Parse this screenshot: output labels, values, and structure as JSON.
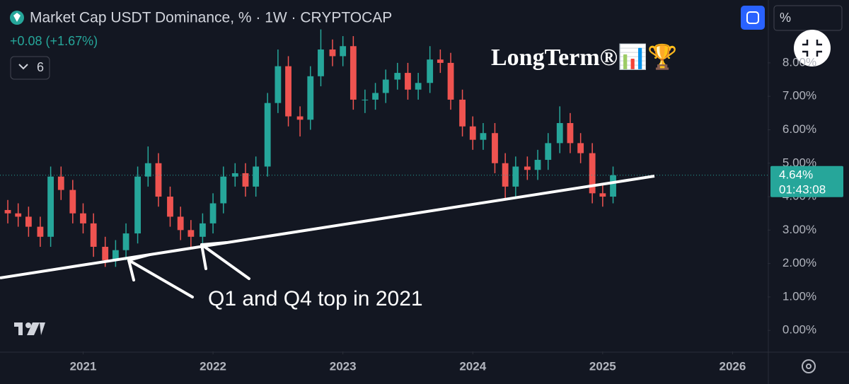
{
  "chart_data": {
    "type": "candlestick",
    "title": "Market Cap USDT Dominance, % · 1W · CRYPTOCAP",
    "change_label": "+0.08 (+1.67%)",
    "indicator_count": "6",
    "scale_button": "%",
    "watermark": "LongTerm®📊🏆",
    "annotation": "Q1 and Q4 top in 2021",
    "last_price_label": "4.64%",
    "countdown": "01:43:08",
    "up_color": "#26a69a",
    "down_color": "#ef5350",
    "x": [
      2020.42,
      2020.5,
      2020.58,
      2020.67,
      2020.75,
      2020.83,
      2020.92,
      2021.0,
      2021.08,
      2021.17,
      2021.25,
      2021.33,
      2021.42,
      2021.5,
      2021.58,
      2021.67,
      2021.75,
      2021.83,
      2021.92,
      2022.0,
      2022.08,
      2022.17,
      2022.25,
      2022.33,
      2022.42,
      2022.5,
      2022.58,
      2022.67,
      2022.75,
      2022.83,
      2022.92,
      2023.0,
      2023.08,
      2023.17,
      2023.25,
      2023.33,
      2023.42,
      2023.5,
      2023.58,
      2023.67,
      2023.75,
      2023.83,
      2023.92,
      2024.0,
      2024.08,
      2024.17,
      2024.25,
      2024.33,
      2024.42,
      2024.5,
      2024.58,
      2024.67,
      2024.75,
      2024.83,
      2024.92,
      2025.0,
      2025.08
    ],
    "open": [
      3.6,
      3.5,
      3.4,
      3.1,
      2.8,
      4.6,
      4.2,
      3.5,
      3.2,
      2.5,
      2.1,
      2.4,
      2.9,
      4.6,
      5.0,
      4.0,
      3.4,
      3.0,
      2.8,
      3.2,
      3.8,
      4.6,
      4.7,
      4.3,
      4.9,
      6.8,
      7.9,
      6.4,
      6.3,
      7.6,
      8.4,
      8.2,
      8.5,
      6.9,
      6.9,
      7.1,
      7.5,
      7.7,
      7.2,
      7.4,
      8.1,
      8.0,
      6.9,
      6.1,
      5.7,
      5.9,
      5.0,
      4.3,
      4.9,
      4.8,
      5.1,
      5.6,
      6.2,
      5.6,
      5.3,
      4.1,
      4.0
    ],
    "high": [
      3.9,
      3.8,
      3.7,
      3.4,
      4.9,
      4.9,
      4.5,
      3.8,
      3.5,
      2.8,
      2.7,
      3.2,
      4.9,
      5.5,
      5.3,
      4.3,
      3.7,
      3.3,
      3.5,
      4.1,
      4.9,
      5.0,
      5.0,
      5.2,
      7.1,
      8.4,
      8.2,
      6.7,
      7.9,
      9.0,
      8.7,
      8.8,
      8.8,
      7.2,
      7.4,
      7.8,
      8.0,
      8.0,
      7.7,
      8.5,
      8.4,
      8.3,
      7.2,
      6.4,
      6.2,
      6.2,
      5.3,
      5.2,
      5.2,
      5.4,
      5.9,
      6.7,
      6.5,
      5.9,
      5.6,
      4.4,
      4.9
    ],
    "low": [
      3.2,
      3.1,
      2.8,
      2.5,
      2.5,
      3.9,
      3.2,
      2.9,
      2.2,
      1.9,
      1.9,
      2.1,
      2.6,
      4.3,
      3.7,
      3.1,
      2.7,
      2.5,
      2.5,
      2.9,
      3.5,
      4.3,
      4.0,
      4.0,
      4.6,
      6.5,
      6.1,
      5.8,
      6.0,
      7.3,
      7.9,
      7.9,
      6.6,
      6.5,
      6.6,
      6.8,
      7.2,
      6.9,
      6.9,
      7.1,
      7.7,
      6.6,
      5.8,
      5.4,
      5.4,
      4.7,
      3.9,
      4.0,
      4.5,
      4.5,
      4.8,
      5.3,
      5.3,
      5.0,
      3.8,
      3.7,
      3.8
    ],
    "close": [
      3.5,
      3.4,
      3.1,
      2.8,
      4.6,
      4.2,
      3.5,
      3.2,
      2.5,
      2.1,
      2.4,
      2.9,
      4.6,
      5.0,
      4.0,
      3.4,
      3.0,
      2.8,
      3.2,
      3.8,
      4.6,
      4.7,
      4.3,
      4.9,
      6.8,
      7.9,
      6.4,
      6.3,
      7.6,
      8.4,
      8.2,
      8.5,
      6.9,
      6.9,
      7.1,
      7.5,
      7.7,
      7.2,
      7.4,
      8.1,
      8.0,
      6.9,
      6.1,
      5.7,
      5.9,
      5.0,
      4.3,
      4.9,
      4.8,
      5.1,
      5.6,
      6.2,
      5.6,
      5.3,
      4.1,
      4.0,
      4.64
    ],
    "xlim": [
      2020.36,
      2026.27
    ],
    "xticks": [
      2021,
      2022,
      2023,
      2024,
      2025,
      2026
    ],
    "ylim": [
      -0.63,
      9.88
    ],
    "yticks": [
      {
        "value": 0,
        "label": "0.00%"
      },
      {
        "value": 1,
        "label": "1.00%"
      },
      {
        "value": 2,
        "label": "2.00%"
      },
      {
        "value": 3,
        "label": "3.00%"
      },
      {
        "value": 4,
        "label": "4.00%"
      },
      {
        "value": 5,
        "label": "5.00%"
      },
      {
        "value": 6,
        "label": "6.00%"
      },
      {
        "value": 7,
        "label": "7.00%"
      },
      {
        "value": 8,
        "label": "8.00%"
      }
    ]
  }
}
